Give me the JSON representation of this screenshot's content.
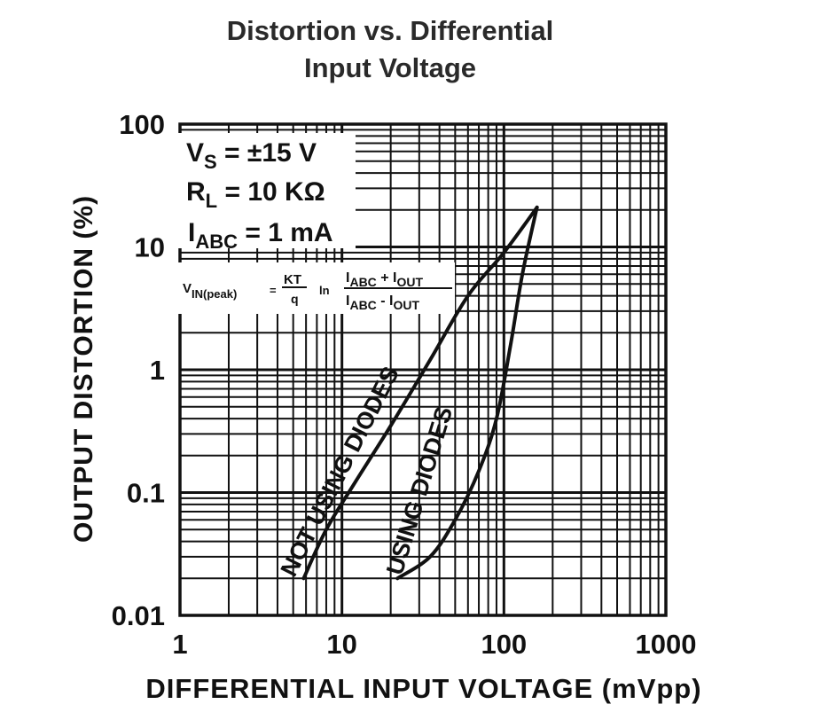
{
  "chart_data": {
    "type": "line",
    "title": [
      "Distortion vs. Differential",
      "Input Voltage"
    ],
    "xlabel": "DIFFERENTIAL INPUT VOLTAGE (mVpp)",
    "ylabel": "OUTPUT DISTORTION (%)",
    "x_scale": "log",
    "y_scale": "log",
    "xlim": [
      1,
      1000
    ],
    "ylim": [
      0.01,
      100
    ],
    "grid": true,
    "x_tick_labels": [
      "1",
      "10",
      "100",
      "1000"
    ],
    "x_tick_values": [
      1,
      10,
      100,
      1000
    ],
    "y_tick_labels": [
      "0.01",
      "0.1",
      "1",
      "10",
      "100"
    ],
    "y_tick_values": [
      0.01,
      0.1,
      1,
      10,
      100
    ],
    "annotation": {
      "vs_label": "V",
      "vs_sub": "S",
      "vs_value": " = ±15 V",
      "rl_label": "R",
      "rl_sub": "L",
      "rl_value": " = 10 KΩ",
      "iabc_label": "I",
      "iabc_sub": "ABC",
      "iabc_value": " = 1 mA",
      "formula_lhs": "V",
      "formula_lhs_sub": "IN(peak)",
      "formula_eq": "=",
      "formula_kt": "KT",
      "formula_q": "q",
      "formula_ln": "ln",
      "formula_num": "I",
      "formula_num_sub1": "ABC",
      "formula_num_op": " + I",
      "formula_num_sub2": "OUT",
      "formula_den": "I",
      "formula_den_sub1": "ABC",
      "formula_den_op": " - I",
      "formula_den_sub2": "OUT"
    },
    "series": [
      {
        "name": "NOT USING DIODES",
        "x": [
          5.8,
          8,
          12,
          20,
          35,
          60,
          100,
          160
        ],
        "y": [
          0.02,
          0.05,
          0.12,
          0.35,
          1.2,
          4,
          9,
          21
        ]
      },
      {
        "name": "USING DIODES",
        "x": [
          22,
          35,
          50,
          70,
          90,
          110,
          130,
          160
        ],
        "y": [
          0.02,
          0.03,
          0.06,
          0.15,
          0.4,
          1.6,
          6,
          21
        ]
      }
    ]
  }
}
